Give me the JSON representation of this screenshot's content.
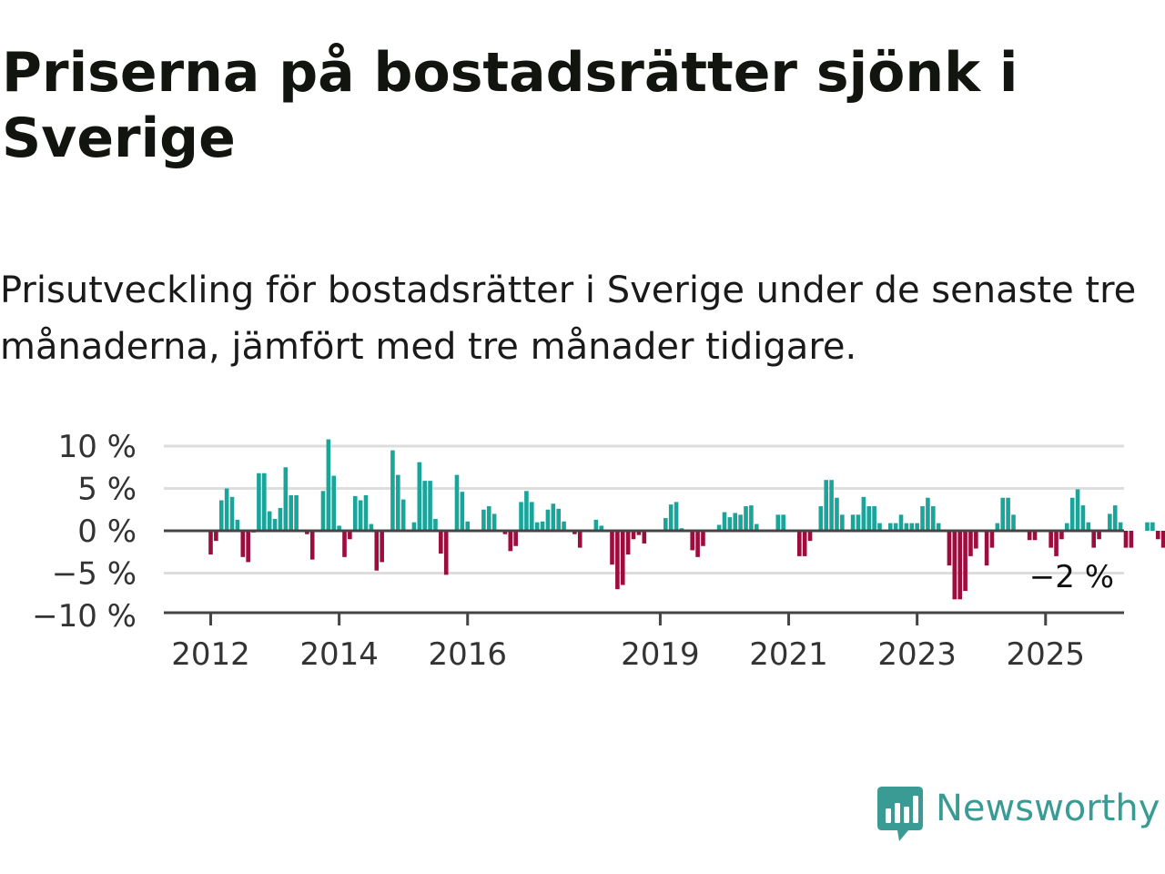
{
  "header": {
    "title": "Priserna på bostadsrätter sjönk i Sverige",
    "subtitle": "Prisutveckling för bostadsrätter i Sverige under de senaste tre månaderna, jämfört med tre månader tidigare."
  },
  "brand": {
    "name": "Newsworthy",
    "icon": "bar-chart-speech-bubble-icon",
    "color": "#3a9a94"
  },
  "colors": {
    "positive": "#1aa59b",
    "negative": "#9c0c3c",
    "grid": "#dddddd",
    "baseline": "#444444"
  },
  "chart_data": {
    "type": "bar",
    "x_start": "2012-01",
    "x_step": "month",
    "ylim": [
      -10,
      11
    ],
    "yticks": [
      10,
      5,
      0,
      -5,
      -10
    ],
    "ytick_labels": [
      "10 %",
      "5 %",
      "0 %",
      "−5 %",
      "−10 %"
    ],
    "xtick_labels": [
      "2012",
      "2014",
      "2016",
      "2019",
      "2021",
      "2023",
      "2025"
    ],
    "grid": true,
    "end_label": "−2 %",
    "values": [
      -2.8,
      -1.2,
      3.6,
      5.0,
      4.0,
      1.3,
      -3.1,
      -3.7,
      -0.2,
      6.8,
      6.8,
      2.3,
      1.4,
      2.7,
      7.5,
      4.2,
      4.2,
      0.0,
      -0.4,
      -3.4,
      0.0,
      4.7,
      10.8,
      6.5,
      0.6,
      -3.1,
      -1.0,
      4.1,
      3.6,
      4.2,
      0.8,
      -4.7,
      -3.7,
      0.0,
      9.5,
      6.6,
      3.7,
      0.0,
      1.0,
      8.1,
      5.9,
      5.9,
      1.4,
      -2.7,
      -5.2,
      0.0,
      6.6,
      4.6,
      1.1,
      0.0,
      0.0,
      2.5,
      2.9,
      2.0,
      0.0,
      -0.4,
      -2.4,
      -1.8,
      3.4,
      4.7,
      3.4,
      1.0,
      1.1,
      2.5,
      3.2,
      2.6,
      1.1,
      0.0,
      -0.4,
      -2.0,
      0.0,
      0.0,
      1.3,
      0.6,
      0.0,
      -4.0,
      -6.9,
      -6.4,
      -2.8,
      -1.0,
      -0.5,
      -1.5,
      0.0,
      0.0,
      0.0,
      1.5,
      3.1,
      3.4,
      0.3,
      0.0,
      -2.3,
      -3.1,
      -1.8,
      0.0,
      0.0,
      0.7,
      2.2,
      1.6,
      2.1,
      1.9,
      2.9,
      3.0,
      0.8,
      0.0,
      0.0,
      0.0,
      1.9,
      1.9,
      0.0,
      0.0,
      -3.0,
      -3.0,
      -1.2,
      0.0,
      2.9,
      6.0,
      6.0,
      3.9,
      1.9,
      0.0,
      1.9,
      1.9,
      4.0,
      2.9,
      2.9,
      0.9,
      0.0,
      0.9,
      0.9,
      1.9,
      0.9,
      0.9,
      0.9,
      2.9,
      3.9,
      2.9,
      0.9,
      0.0,
      -4.1,
      -8.1,
      -8.1,
      -7.1,
      -3.0,
      -2.1,
      0.0,
      -4.1,
      -2.0,
      0.9,
      3.9,
      3.9,
      1.9,
      0.0,
      0.0,
      -1.1,
      -1.1,
      0.0,
      0.0,
      -2.0,
      -3.0,
      -1.0,
      0.9,
      3.9,
      4.9,
      3.0,
      1.0,
      -2.0,
      -1.0,
      0.0,
      2.0,
      3.0,
      1.0,
      -2.0,
      -2.0,
      0.0,
      0.0,
      1.0,
      1.0,
      -1.0,
      -2.0
    ]
  }
}
